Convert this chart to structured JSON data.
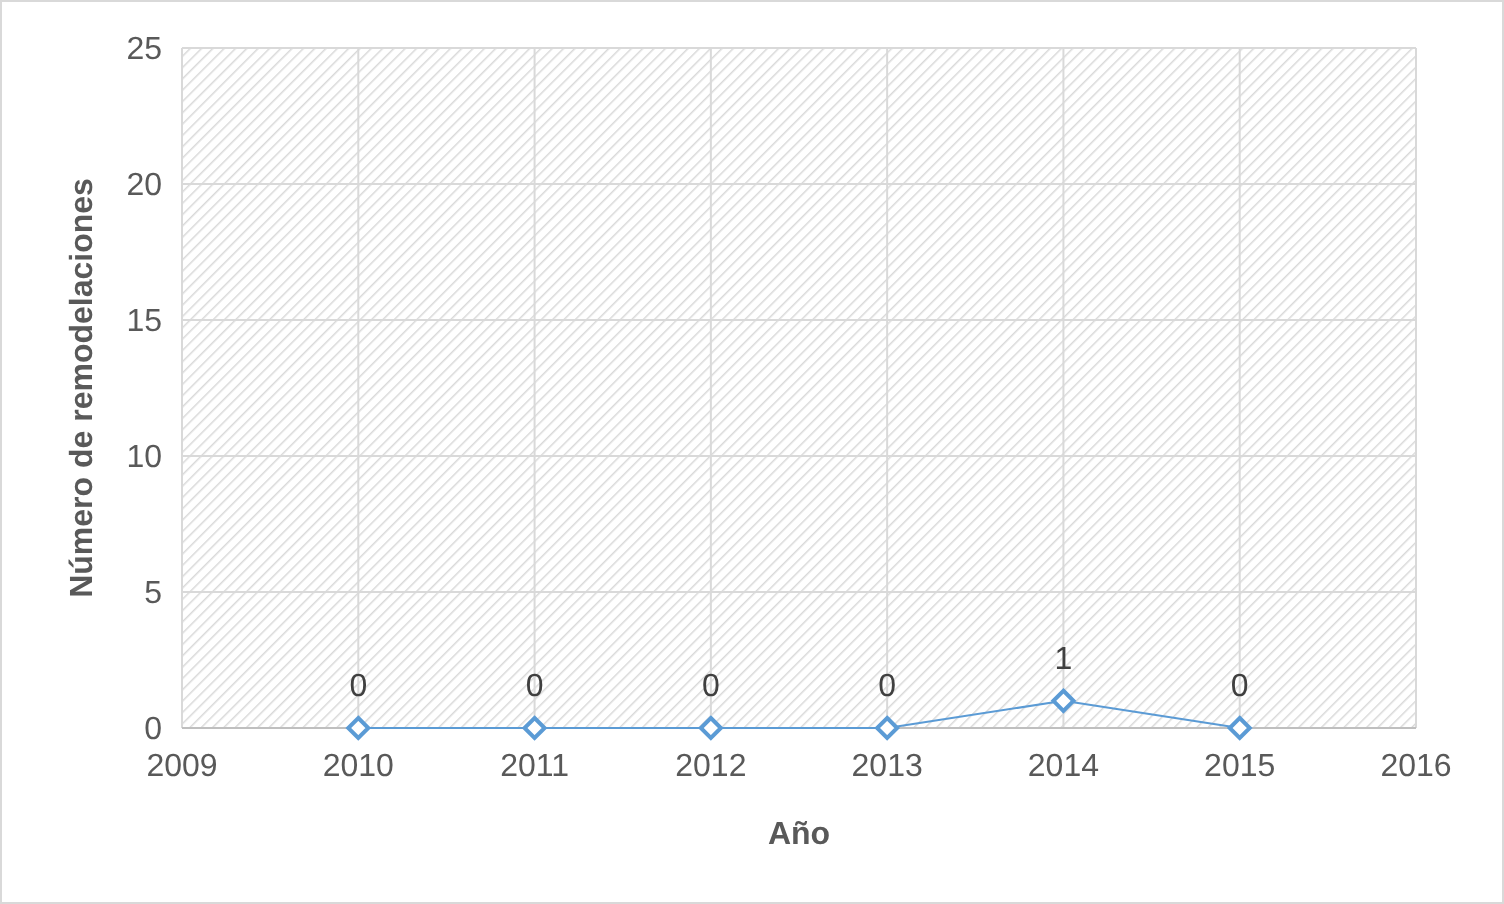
{
  "chart_data": {
    "type": "line",
    "xlabel": "Año",
    "ylabel": "Número de remodelaciones",
    "x": [
      2010,
      2011,
      2012,
      2013,
      2014,
      2015
    ],
    "series": [
      {
        "color": "#5b9bd5",
        "values": [
          0,
          0,
          0,
          0,
          1,
          0
        ]
      }
    ],
    "xlim": [
      2009,
      2016
    ],
    "xticks": [
      2009,
      2010,
      2011,
      2012,
      2013,
      2014,
      2015,
      2016
    ],
    "ylim": [
      0,
      25
    ],
    "yticks": [
      0,
      5,
      10,
      15,
      20,
      25
    ],
    "grid": true,
    "marker": "diamond",
    "line_style": "solid",
    "data_labels": true
  }
}
